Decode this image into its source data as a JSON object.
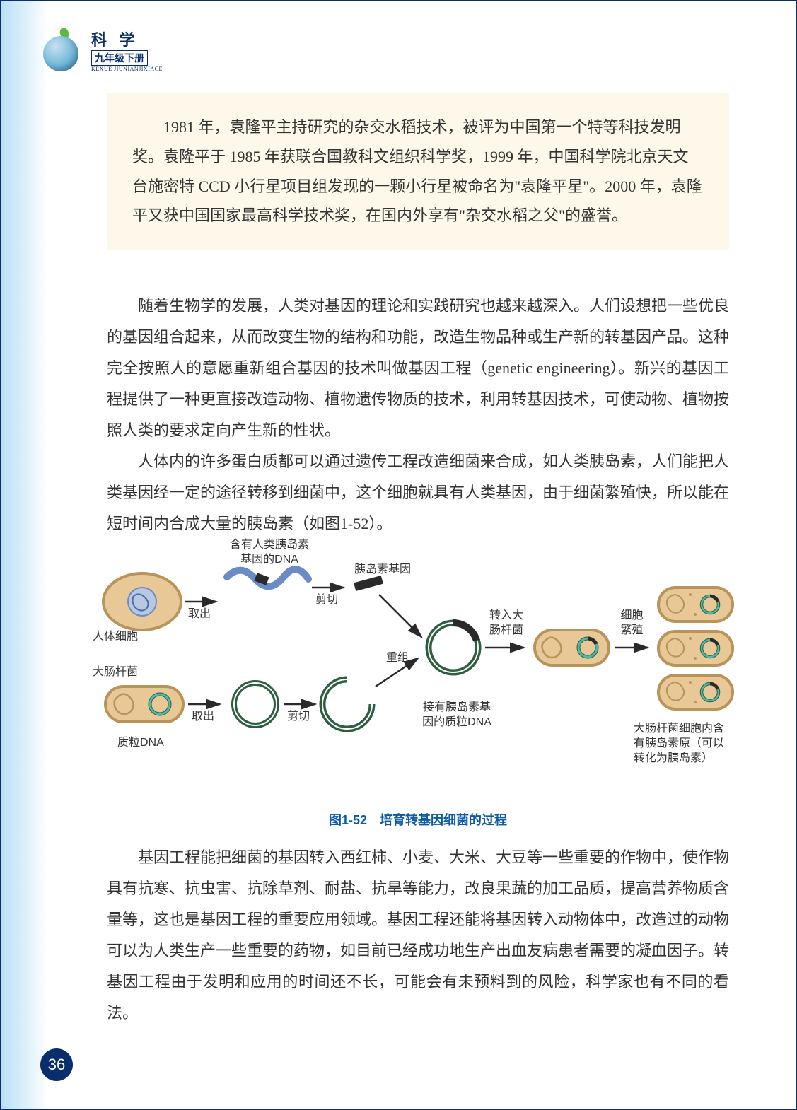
{
  "header": {
    "title": "科 学",
    "subtitle": "九年级下册",
    "pinyin": "KEXUE JIUNIANJIXIACE"
  },
  "infoBox": "1981 年，袁隆平主持研究的杂交水稻技术，被评为中国第一个特等科技发明奖。袁隆平于 1985 年获联合国教科文组织科学奖，1999 年，中国科学院北京天文台施密特 CCD 小行星项目组发现的一颗小行星被命名为\"袁隆平星\"。2000 年，袁隆平又获中国国家最高科学技术奖，在国内外享有\"杂交水稻之父\"的盛誉。",
  "para1": "随着生物学的发展，人类对基因的理论和实践研究也越来越深入。人们设想把一些优良的基因组合起来，从而改变生物的结构和功能，改造生物品种或生产新的转基因产品。这种完全按照人的意愿重新组合基因的技术叫做基因工程（genetic engineering）。新兴的基因工程提供了一种更直接改造动物、植物遗传物质的技术，利用转基因技术，可使动物、植物按照人类的要求定向产生新的性状。",
  "para2": "人体内的许多蛋白质都可以通过遗传工程改造细菌来合成，如人类胰岛素，人们能把人类基因经一定的途径转移到细菌中，这个细胞就具有人类基因，由于细菌繁殖快，所以能在短时间内合成大量的胰岛素（如图1-52）。",
  "para3": "基因工程能把细菌的基因转入西红柿、小麦、大米、大豆等一些重要的作物中，使作物具有抗寒、抗虫害、抗除草剂、耐盐、抗旱等能力，改良果蔬的加工品质，提高营养物质含量等，这也是基因工程的重要应用领域。基因工程还能将基因转入动物体中，改造过的动物可以为人类生产一些重要的药物，如目前已经成功地生产出血友病患者需要的凝血因子。转基因工程由于发明和应用的时间还不长，可能会有未预料到的风险，科学家也有不同的看法。",
  "diagram": {
    "caption": "图1-52　培育转基因细菌的过程",
    "labels": {
      "dnaWithInsulin": "含有人类胰岛素\n基因的DNA",
      "insulinGene": "胰岛素基因",
      "humanCell": "人体细胞",
      "ecoli": "大肠杆菌",
      "plasmidDna": "质粒DNA",
      "extract1": "取出",
      "extract2": "取出",
      "cut1": "剪切",
      "cut2": "剪切",
      "recombine": "重组",
      "plasmidWithGene": "接有胰岛素基\n因的质粒DNA",
      "insertEcoli": "转入大\n肠杆菌",
      "cellReproduce": "细胞\n繁殖",
      "finalNote": "大肠杆菌细胞内含\n有胰岛素原（可以\n转化为胰岛素）"
    },
    "colors": {
      "cellFill": "#e8c896",
      "cellStroke": "#b8935a",
      "nucleus": "#6b8bc4",
      "plasmidRing": "#2d5f3f",
      "plasmidTeal": "#4fb8a8",
      "geneSegment": "#2a2a2a",
      "arrow": "#2a2a2a"
    }
  },
  "pageNumber": "36"
}
